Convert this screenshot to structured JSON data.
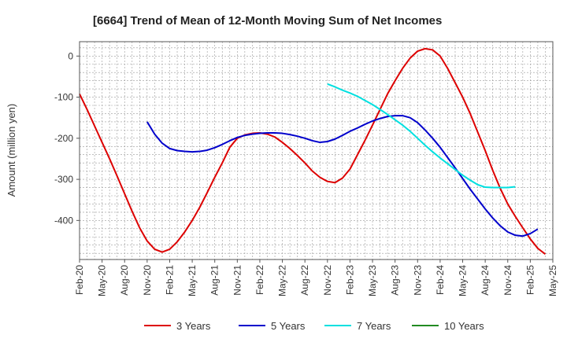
{
  "chart_data": {
    "type": "line",
    "title": "[6664]  Trend of Mean of 12-Month Moving Sum of Net Incomes",
    "ylabel": "Amount (million yen)",
    "xlabel": "",
    "ylim": [
      -495,
      35
    ],
    "yticks": [
      0,
      -100,
      -200,
      -300,
      -400
    ],
    "x_ticks": [
      "Feb-20",
      "May-20",
      "Aug-20",
      "Nov-20",
      "Feb-21",
      "May-21",
      "Aug-21",
      "Nov-21",
      "Feb-22",
      "May-22",
      "Aug-22",
      "Nov-22",
      "Feb-23",
      "May-23",
      "Aug-23",
      "Nov-23",
      "Feb-24",
      "May-24",
      "Aug-24",
      "Nov-24",
      "Feb-25",
      "May-25"
    ],
    "grid": true,
    "legend_position": "bottom",
    "series": [
      {
        "name": "3 Years",
        "color": "#dd0000",
        "start_index": 0,
        "values": [
          -92,
          -130,
          -170,
          -210,
          -250,
          -292,
          -335,
          -378,
          -418,
          -450,
          -470,
          -477,
          -470,
          -452,
          -428,
          -400,
          -368,
          -332,
          -295,
          -260,
          -222,
          -200,
          -192,
          -188,
          -187,
          -190,
          -197,
          -210,
          -225,
          -242,
          -260,
          -280,
          -295,
          -305,
          -308,
          -297,
          -275,
          -240,
          -205,
          -168,
          -130,
          -92,
          -60,
          -30,
          -5,
          12,
          18,
          15,
          0,
          -30,
          -65,
          -100,
          -140,
          -185,
          -230,
          -278,
          -322,
          -360,
          -390,
          -418,
          -445,
          -468,
          -482
        ]
      },
      {
        "name": "5 Years",
        "color": "#0000cc",
        "start_index": 9,
        "values": [
          -160,
          -190,
          -212,
          -225,
          -230,
          -232,
          -233,
          -232,
          -229,
          -223,
          -215,
          -206,
          -198,
          -193,
          -190,
          -188,
          -187,
          -187,
          -188,
          -191,
          -195,
          -200,
          -206,
          -210,
          -208,
          -202,
          -193,
          -183,
          -175,
          -166,
          -158,
          -152,
          -147,
          -145,
          -145,
          -150,
          -162,
          -180,
          -200,
          -222,
          -247,
          -272,
          -298,
          -324,
          -348,
          -372,
          -394,
          -413,
          -428,
          -436,
          -438,
          -432,
          -421
        ]
      },
      {
        "name": "7 Years",
        "color": "#00e0e0",
        "start_index": 33,
        "values": [
          -68,
          -75,
          -83,
          -90,
          -98,
          -108,
          -118,
          -130,
          -142,
          -155,
          -168,
          -183,
          -200,
          -217,
          -233,
          -248,
          -262,
          -276,
          -290,
          -302,
          -313,
          -319,
          -320,
          -320,
          -320,
          -318
        ]
      },
      {
        "name": "10 Years",
        "color": "#228b22",
        "start_index": 0,
        "values": []
      }
    ]
  }
}
